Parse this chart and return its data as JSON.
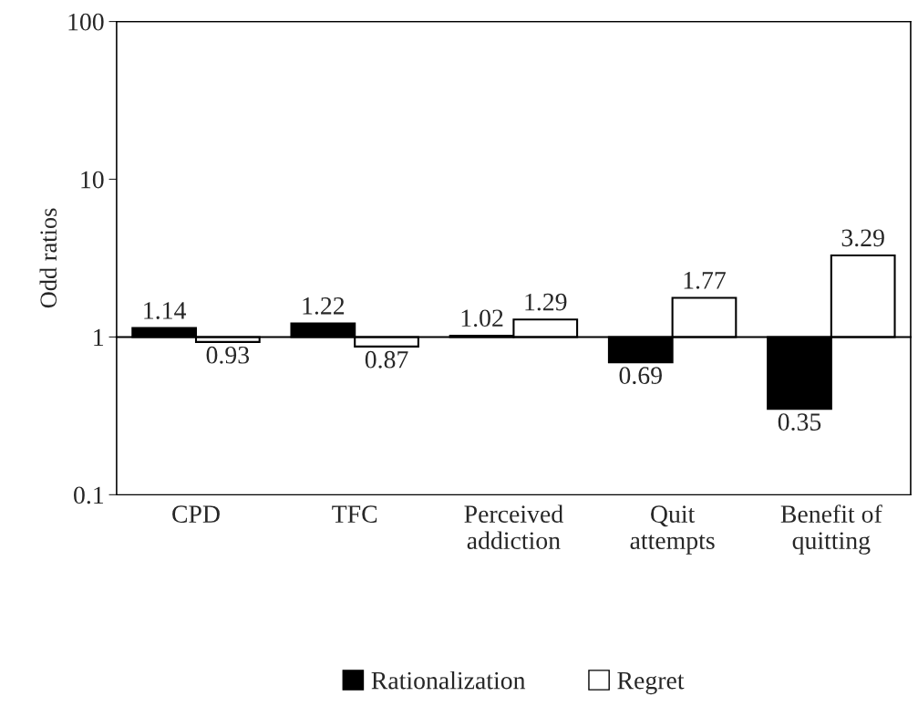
{
  "chart_data": {
    "type": "bar",
    "ylabel": "Odd ratios",
    "categories": [
      "CPD",
      "TFC",
      "Perceived\naddiction",
      "Quit\nattempts",
      "Benefit of\nquitting"
    ],
    "series": [
      {
        "name": "Rationalization",
        "color": "#000000",
        "base": [
          1,
          1,
          1,
          1,
          1
        ],
        "values": [
          0.14,
          0.22,
          0.02,
          -0.31,
          -0.65
        ],
        "value_labels": [
          "1.14",
          "1.22",
          "1.02",
          "0.69",
          "0.35"
        ]
      },
      {
        "name": "Regret",
        "color": "#ffffff",
        "base": [
          1,
          1,
          1,
          1,
          1
        ],
        "values": [
          -0.07,
          -0.13,
          0.29,
          0.77,
          2.29
        ],
        "value_labels": [
          "0.93",
          "0.87",
          "1.29",
          "1.77",
          "3.29"
        ]
      }
    ],
    "log": true,
    "ylim": [
      0.1,
      100
    ],
    "yticks": [
      0.1,
      1,
      10,
      100
    ],
    "ref_lines": [
      {
        "axis": "y",
        "value": 1
      }
    ],
    "grid": false,
    "legend": "bottom"
  }
}
